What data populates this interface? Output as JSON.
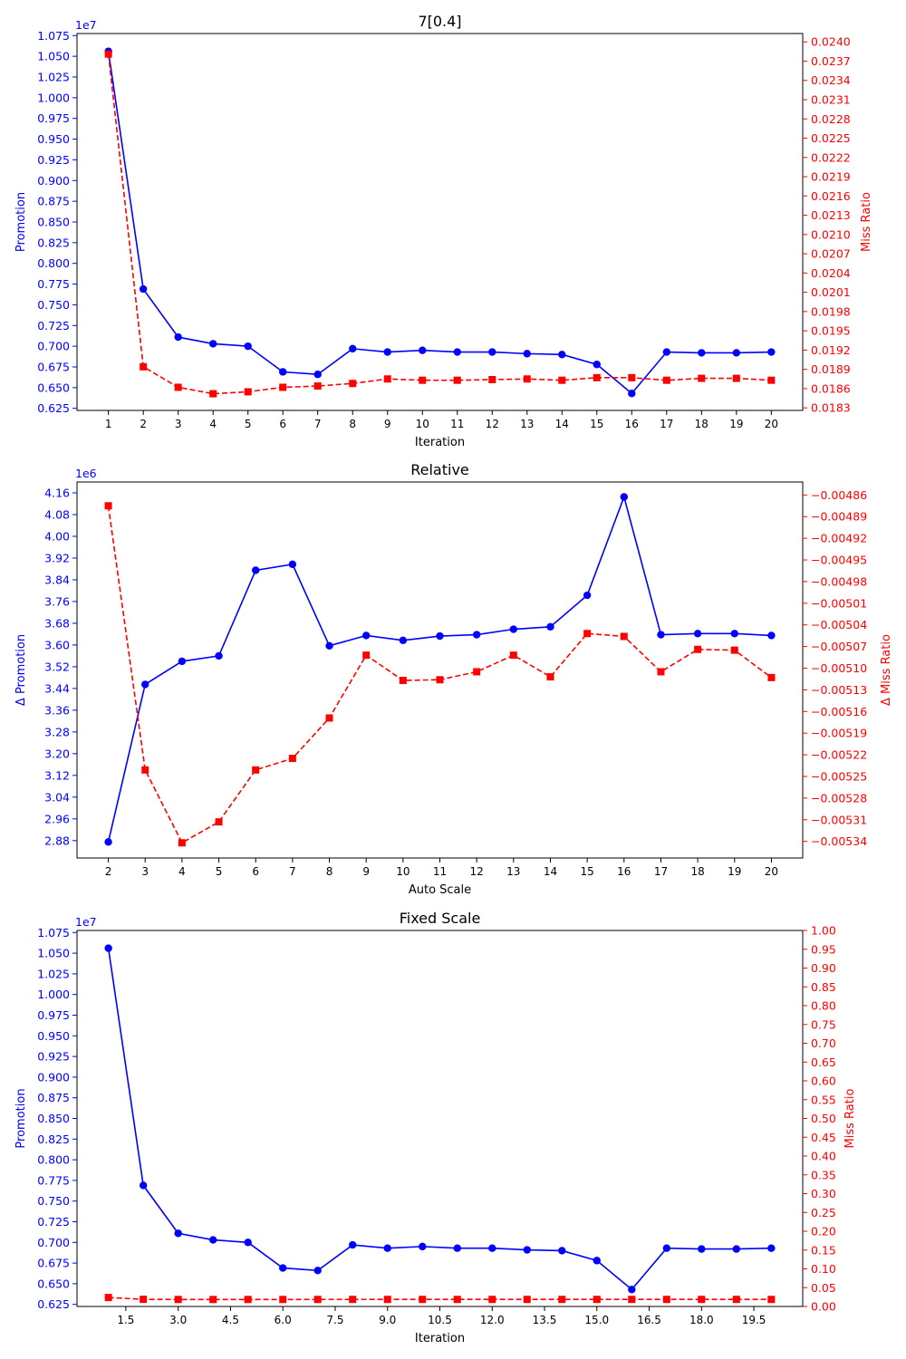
{
  "chart_data": [
    {
      "type": "line",
      "title": "7[0.4]",
      "xlabel": "Iteration",
      "ylabel_left": "Promotion",
      "ylabel_right": "Miss Ratio",
      "left_offset_text": "1e7",
      "left_color": "#0000ff",
      "right_color": "#ff0000",
      "x": [
        1,
        2,
        3,
        4,
        5,
        6,
        7,
        8,
        9,
        10,
        11,
        12,
        13,
        14,
        15,
        16,
        17,
        18,
        19,
        20
      ],
      "xticks": [
        1,
        2,
        3,
        4,
        5,
        6,
        7,
        8,
        9,
        10,
        11,
        12,
        13,
        14,
        15,
        16,
        17,
        18,
        19,
        20
      ],
      "xtick_labels": [
        "1",
        "2",
        "3",
        "4",
        "5",
        "6",
        "7",
        "8",
        "9",
        "10",
        "11",
        "12",
        "13",
        "14",
        "15",
        "16",
        "17",
        "18",
        "19",
        "20"
      ],
      "xlim": [
        0.1,
        20.9
      ],
      "left_ylim": [
        0.6225,
        1.0775
      ],
      "left_ticks": [
        0.625,
        0.65,
        0.675,
        0.7,
        0.725,
        0.75,
        0.775,
        0.8,
        0.825,
        0.85,
        0.875,
        0.9,
        0.925,
        0.95,
        0.975,
        1.0,
        1.025,
        1.05,
        1.075
      ],
      "left_tick_labels": [
        "0.625",
        "0.650",
        "0.675",
        "0.700",
        "0.725",
        "0.750",
        "0.775",
        "0.800",
        "0.825",
        "0.850",
        "0.875",
        "0.900",
        "0.925",
        "0.950",
        "0.975",
        "1.000",
        "1.025",
        "1.050",
        "1.075"
      ],
      "right_ylim": [
        0.01826,
        0.02413
      ],
      "right_ticks": [
        0.0183,
        0.0186,
        0.0189,
        0.0192,
        0.0195,
        0.0198,
        0.0201,
        0.0204,
        0.0207,
        0.021,
        0.0213,
        0.0216,
        0.0219,
        0.0222,
        0.0225,
        0.0228,
        0.0231,
        0.0234,
        0.0237,
        0.024
      ],
      "right_tick_labels": [
        "0.0183",
        "0.0186",
        "0.0189",
        "0.0192",
        "0.0195",
        "0.0198",
        "0.0201",
        "0.0204",
        "0.0207",
        "0.0210",
        "0.0213",
        "0.0216",
        "0.0219",
        "0.0222",
        "0.0225",
        "0.0228",
        "0.0231",
        "0.0234",
        "0.0237",
        "0.0240"
      ],
      "series": [
        {
          "axis": "left",
          "marker": "circle",
          "style": "solid",
          "color": "#0000ff",
          "values": [
            1.056,
            0.769,
            0.711,
            0.703,
            0.7,
            0.669,
            0.666,
            0.697,
            0.693,
            0.695,
            0.693,
            0.693,
            0.691,
            0.69,
            0.678,
            0.643,
            0.693,
            0.692,
            0.692,
            0.693
          ]
        },
        {
          "axis": "right",
          "marker": "square",
          "style": "dashed",
          "color": "#ff0000",
          "values": [
            0.02381,
            0.01894,
            0.01862,
            0.01852,
            0.01855,
            0.01862,
            0.01864,
            0.01868,
            0.01875,
            0.01873,
            0.01873,
            0.01874,
            0.01875,
            0.01873,
            0.01877,
            0.01877,
            0.01873,
            0.01876,
            0.01876,
            0.01873
          ]
        }
      ]
    },
    {
      "type": "line",
      "title": "Relative",
      "xlabel": "Auto Scale",
      "ylabel_left": "Δ Promotion",
      "ylabel_right": "Δ Miss Ratio",
      "left_offset_text": "1e6",
      "left_color": "#0000ff",
      "right_color": "#ff0000",
      "x": [
        2,
        3,
        4,
        5,
        6,
        7,
        8,
        9,
        10,
        11,
        12,
        13,
        14,
        15,
        16,
        17,
        18,
        19,
        20
      ],
      "xticks": [
        2,
        3,
        4,
        5,
        6,
        7,
        8,
        9,
        10,
        11,
        12,
        13,
        14,
        15,
        16,
        17,
        18,
        19,
        20
      ],
      "xtick_labels": [
        "2",
        "3",
        "4",
        "5",
        "6",
        "7",
        "8",
        "9",
        "10",
        "11",
        "12",
        "13",
        "14",
        "15",
        "16",
        "17",
        "18",
        "19",
        "20"
      ],
      "xlim": [
        1.15,
        20.85
      ],
      "left_ylim": [
        2.816,
        4.2
      ],
      "left_ticks": [
        2.88,
        2.96,
        3.04,
        3.12,
        3.2,
        3.28,
        3.36,
        3.44,
        3.52,
        3.6,
        3.68,
        3.76,
        3.84,
        3.92,
        4.0,
        4.08,
        4.16
      ],
      "left_tick_labels": [
        "2.88",
        "2.96",
        "3.04",
        "3.12",
        "3.20",
        "3.28",
        "3.36",
        "3.44",
        "3.52",
        "3.60",
        "3.68",
        "3.76",
        "3.84",
        "3.92",
        "4.00",
        "4.08",
        "4.16"
      ],
      "right_ylim": [
        -0.005363,
        -0.004842
      ],
      "right_ticks": [
        -0.00534,
        -0.00531,
        -0.00528,
        -0.00525,
        -0.00522,
        -0.00519,
        -0.00516,
        -0.00513,
        -0.0051,
        -0.00507,
        -0.00504,
        -0.00501,
        -0.00498,
        -0.00495,
        -0.00492,
        -0.00489,
        -0.00486
      ],
      "right_tick_labels": [
        "−0.00534",
        "−0.00531",
        "−0.00528",
        "−0.00525",
        "−0.00522",
        "−0.00519",
        "−0.00516",
        "−0.00513",
        "−0.00510",
        "−0.00507",
        "−0.00504",
        "−0.00501",
        "−0.00498",
        "−0.00495",
        "−0.00492",
        "−0.00489",
        "−0.00486"
      ],
      "series": [
        {
          "axis": "left",
          "marker": "circle",
          "style": "solid",
          "color": "#0000ff",
          "values": [
            2.875,
            3.455,
            3.54,
            3.56,
            3.875,
            3.897,
            3.597,
            3.635,
            3.617,
            3.633,
            3.638,
            3.658,
            3.667,
            3.783,
            4.145,
            3.638,
            3.642,
            3.642,
            3.635
          ]
        },
        {
          "axis": "right",
          "marker": "square",
          "style": "dashed",
          "color": "#ff0000",
          "values": [
            -0.004875,
            -0.005241,
            -0.005342,
            -0.005313,
            -0.005241,
            -0.005225,
            -0.005169,
            -0.005082,
            -0.005117,
            -0.005116,
            -0.005105,
            -0.005082,
            -0.005112,
            -0.005052,
            -0.005056,
            -0.005105,
            -0.005074,
            -0.005075,
            -0.005113
          ]
        }
      ]
    },
    {
      "type": "line",
      "title": "Fixed Scale",
      "xlabel": "Iteration",
      "ylabel_left": "Promotion",
      "ylabel_right": "Miss Ratio",
      "left_offset_text": "1e7",
      "left_color": "#0000ff",
      "right_color": "#ff0000",
      "x": [
        1,
        2,
        3,
        4,
        5,
        6,
        7,
        8,
        9,
        10,
        11,
        12,
        13,
        14,
        15,
        16,
        17,
        18,
        19,
        20
      ],
      "xticks": [
        1.5,
        3.0,
        4.5,
        6.0,
        7.5,
        9.0,
        10.5,
        12.0,
        13.5,
        15.0,
        16.5,
        18.0,
        19.5
      ],
      "xtick_labels": [
        "1.5",
        "3.0",
        "4.5",
        "6.0",
        "7.5",
        "9.0",
        "10.5",
        "12.0",
        "13.5",
        "15.0",
        "16.5",
        "18.0",
        "19.5"
      ],
      "xlim": [
        0.1,
        20.9
      ],
      "left_ylim": [
        0.6225,
        1.0775
      ],
      "left_ticks": [
        0.625,
        0.65,
        0.675,
        0.7,
        0.725,
        0.75,
        0.775,
        0.8,
        0.825,
        0.85,
        0.875,
        0.9,
        0.925,
        0.95,
        0.975,
        1.0,
        1.025,
        1.05,
        1.075
      ],
      "left_tick_labels": [
        "0.625",
        "0.650",
        "0.675",
        "0.700",
        "0.725",
        "0.750",
        "0.775",
        "0.800",
        "0.825",
        "0.850",
        "0.875",
        "0.900",
        "0.925",
        "0.950",
        "0.975",
        "1.000",
        "1.025",
        "1.050",
        "1.075"
      ],
      "right_ylim": [
        0,
        1
      ],
      "right_ticks": [
        0,
        0.05,
        0.1,
        0.15,
        0.2,
        0.25,
        0.3,
        0.35,
        0.4,
        0.45,
        0.5,
        0.55,
        0.6,
        0.65,
        0.7,
        0.75,
        0.8,
        0.85,
        0.9,
        0.95,
        1.0
      ],
      "right_tick_labels": [
        "0.00",
        "0.05",
        "0.10",
        "0.15",
        "0.20",
        "0.25",
        "0.30",
        "0.35",
        "0.40",
        "0.45",
        "0.50",
        "0.55",
        "0.60",
        "0.65",
        "0.70",
        "0.75",
        "0.80",
        "0.85",
        "0.90",
        "0.95",
        "1.00"
      ],
      "series": [
        {
          "axis": "left",
          "marker": "circle",
          "style": "solid",
          "color": "#0000ff",
          "values": [
            1.056,
            0.769,
            0.711,
            0.703,
            0.7,
            0.669,
            0.666,
            0.697,
            0.693,
            0.695,
            0.693,
            0.693,
            0.691,
            0.69,
            0.678,
            0.643,
            0.693,
            0.692,
            0.692,
            0.693
          ]
        },
        {
          "axis": "right",
          "marker": "square",
          "style": "dashed",
          "color": "#ff0000",
          "values": [
            0.02381,
            0.01894,
            0.01862,
            0.01852,
            0.01855,
            0.01862,
            0.01864,
            0.01868,
            0.01875,
            0.01873,
            0.01873,
            0.01874,
            0.01875,
            0.01873,
            0.01877,
            0.01877,
            0.01873,
            0.01876,
            0.01876,
            0.01873
          ]
        }
      ]
    }
  ]
}
